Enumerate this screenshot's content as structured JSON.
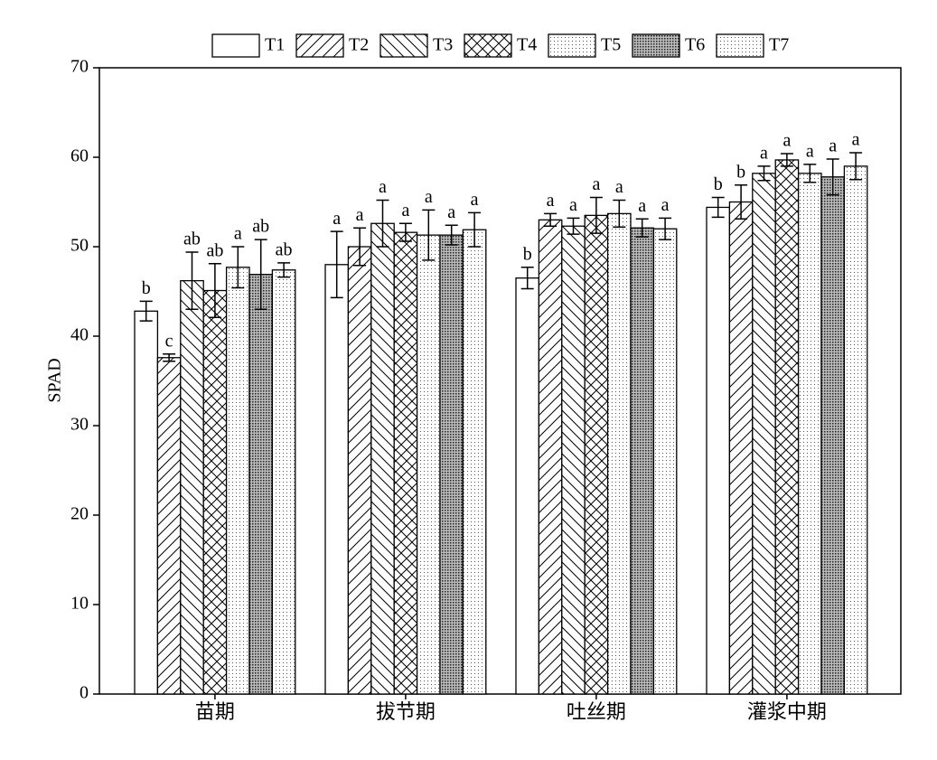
{
  "chart_data": {
    "type": "bar",
    "ylabel": "SPAD",
    "categories": [
      "苗期",
      "拔节期",
      "吐丝期",
      "灌浆中期"
    ],
    "ylim": [
      0,
      70
    ],
    "yticks": [
      0,
      10,
      20,
      30,
      40,
      50,
      60,
      70
    ],
    "legend": "top",
    "series": [
      {
        "name": "T1",
        "pattern": "none",
        "color": "#000000",
        "values": [
          42.8,
          48.0,
          46.5,
          54.4
        ],
        "errors": [
          1.1,
          3.7,
          1.2,
          1.1
        ],
        "labels": [
          "b",
          "a",
          "b",
          "b"
        ]
      },
      {
        "name": "T2",
        "pattern": "forward-hatch",
        "color": "#000000",
        "values": [
          37.6,
          50.0,
          53.0,
          55.0
        ],
        "errors": [
          0.4,
          2.1,
          0.7,
          1.9
        ],
        "labels": [
          "c",
          "a",
          "a",
          "b"
        ]
      },
      {
        "name": "T3",
        "pattern": "back-hatch",
        "color": "#000000",
        "values": [
          46.2,
          52.6,
          52.3,
          58.2
        ],
        "errors": [
          3.2,
          2.6,
          0.9,
          0.8
        ],
        "labels": [
          "ab",
          "a",
          "a",
          "a"
        ]
      },
      {
        "name": "T4",
        "pattern": "cross-hatch",
        "color": "#000000",
        "values": [
          45.1,
          51.6,
          53.5,
          59.7
        ],
        "errors": [
          3.0,
          1.0,
          2.0,
          0.7
        ],
        "labels": [
          "ab",
          "a",
          "a",
          "a"
        ]
      },
      {
        "name": "T5",
        "pattern": "dots",
        "color": "#000000",
        "values": [
          47.7,
          51.3,
          53.7,
          58.2
        ],
        "errors": [
          2.3,
          2.8,
          1.5,
          1.0
        ],
        "labels": [
          "a",
          "a",
          "a",
          "a"
        ]
      },
      {
        "name": "T6",
        "pattern": "dense-dots",
        "color": "#000000",
        "values": [
          46.9,
          51.3,
          52.1,
          57.8
        ],
        "errors": [
          3.9,
          1.1,
          1.0,
          2.0
        ],
        "labels": [
          "ab",
          "a",
          "a",
          "a"
        ]
      },
      {
        "name": "T7",
        "pattern": "dots",
        "color": "#000000",
        "values": [
          47.4,
          51.9,
          52.0,
          59.0
        ],
        "errors": [
          0.8,
          1.9,
          1.2,
          1.5
        ],
        "labels": [
          "ab",
          "a",
          "a",
          "a"
        ]
      }
    ]
  }
}
